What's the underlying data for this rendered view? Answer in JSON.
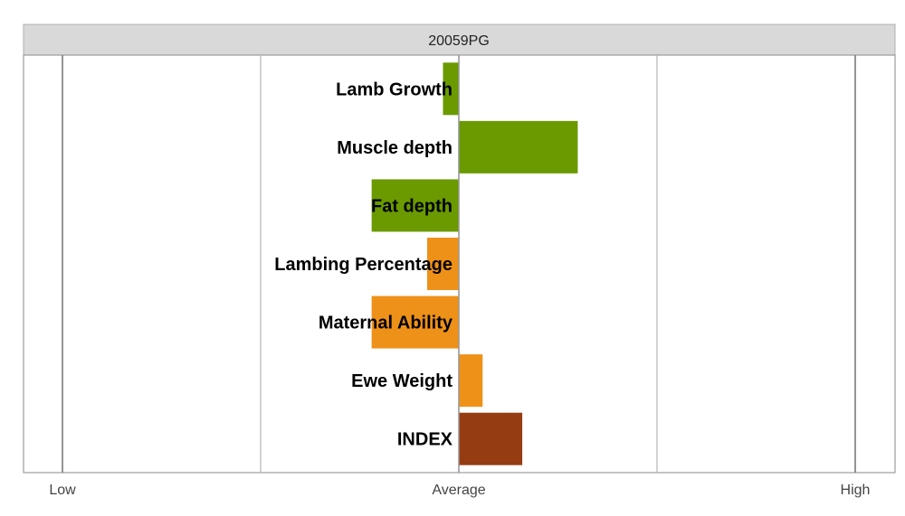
{
  "chart_data": {
    "type": "bar",
    "orientation": "horizontal",
    "title": "20059PG",
    "categories": [
      "Lamb Growth",
      "Muscle depth",
      "Fat depth",
      "Lambing Percentage",
      "Maternal Ability",
      "Ewe Weight",
      "INDEX"
    ],
    "values": [
      -0.08,
      0.6,
      -0.44,
      -0.16,
      -0.44,
      0.12,
      0.32
    ],
    "bar_colors": [
      "#6a9a00",
      "#6a9a00",
      "#6a9a00",
      "#ee9119",
      "#ee9119",
      "#ee9119",
      "#963c12"
    ],
    "xlim": [
      -2.2,
      2.2
    ],
    "xticks": [
      {
        "value": -2,
        "label": "Low"
      },
      {
        "value": 0,
        "label": "Average"
      },
      {
        "value": 2,
        "label": "High"
      }
    ],
    "minor_gridlines": [
      -1,
      1
    ],
    "grid": true
  }
}
